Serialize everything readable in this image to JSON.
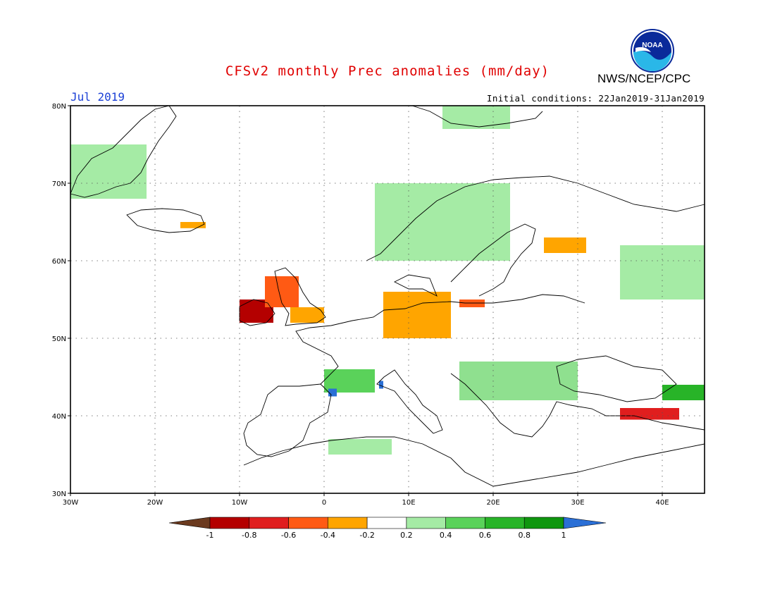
{
  "header": {
    "title": "CFSv2 monthly Prec anomalies (mm/day)",
    "agency": "NWS/NCEP/CPC",
    "logo_text": "NOAA",
    "month": "Jul 2019",
    "initial_conditions": "Initial conditions: 22Jan2019-31Jan2019"
  },
  "axes": {
    "lat_labels": [
      "80N",
      "70N",
      "60N",
      "50N",
      "40N",
      "30N"
    ],
    "lon_labels": [
      "30W",
      "20W",
      "10W",
      "0",
      "10E",
      "20E",
      "30E",
      "40E"
    ]
  },
  "colorbar": {
    "labels": [
      "-1",
      "-0.8",
      "-0.6",
      "-0.4",
      "-0.2",
      "0.2",
      "0.4",
      "0.6",
      "0.8",
      "1"
    ],
    "colors": [
      "#6b3a1f",
      "#b40000",
      "#e01e1e",
      "#ff5a14",
      "#ffa500",
      "#ffffff",
      "#a5eba5",
      "#5ad25a",
      "#28b428",
      "#0f960f",
      "#2a6fd6"
    ]
  },
  "chart_data": {
    "type": "heatmap",
    "title": "CFSv2 monthly Prec anomalies (mm/day)",
    "lon_range": [
      -30,
      45
    ],
    "lat_range": [
      30,
      80
    ],
    "units": "mm/day",
    "regions": [
      {
        "name": "Greenland coast",
        "lon": [
          -30,
          -21
        ],
        "lat": [
          68,
          75
        ],
        "class": "0.2-0.4"
      },
      {
        "name": "Iceland east",
        "lon": [
          -17,
          -14
        ],
        "lat": [
          64.2,
          65
        ],
        "class": "-0.4--0.2"
      },
      {
        "name": "Ireland",
        "lon": [
          -10,
          -6
        ],
        "lat": [
          52,
          55
        ],
        "class": "-1--0.6"
      },
      {
        "name": "Scotland",
        "lon": [
          -7,
          -3
        ],
        "lat": [
          54,
          58
        ],
        "class": "-0.6--0.4"
      },
      {
        "name": "England east",
        "lon": [
          -4,
          0
        ],
        "lat": [
          52,
          54
        ],
        "class": "-0.4--0.2"
      },
      {
        "name": "Northern Germany / Denmark",
        "lon": [
          7,
          15
        ],
        "lat": [
          50,
          56
        ],
        "class": "-0.6--0.2"
      },
      {
        "name": "Poland north",
        "lon": [
          16,
          19
        ],
        "lat": [
          54,
          55
        ],
        "class": "-0.6--0.4"
      },
      {
        "name": "Finland east",
        "lon": [
          26,
          31
        ],
        "lat": [
          61,
          63
        ],
        "class": "-0.6--0.2"
      },
      {
        "name": "Norway",
        "lon": [
          6,
          22
        ],
        "lat": [
          60,
          70
        ],
        "class": "0.2-0.4"
      },
      {
        "name": "Russia west",
        "lon": [
          35,
          45
        ],
        "lat": [
          55,
          62
        ],
        "class": "0.2-0.4"
      },
      {
        "name": "France south",
        "lon": [
          0,
          6
        ],
        "lat": [
          43,
          46
        ],
        "class": "0.4-0.8"
      },
      {
        "name": "Pyrenees",
        "lon": [
          0.5,
          1.5
        ],
        "lat": [
          42.5,
          43.5
        ],
        "class": ">1"
      },
      {
        "name": "Alps",
        "lon": [
          6.5,
          7
        ],
        "lat": [
          43.5,
          44.5
        ],
        "class": ">1"
      },
      {
        "name": "Balkans",
        "lon": [
          16,
          30
        ],
        "lat": [
          42,
          47
        ],
        "class": "0.2-0.6"
      },
      {
        "name": "Turkey east",
        "lon": [
          35,
          42
        ],
        "lat": [
          39.5,
          41
        ],
        "class": "-1--0.4"
      },
      {
        "name": "Caucasus",
        "lon": [
          40,
          45
        ],
        "lat": [
          42,
          44
        ],
        "class": "0.4-1"
      },
      {
        "name": "North Africa",
        "lon": [
          0.5,
          8
        ],
        "lat": [
          35,
          37
        ],
        "class": "0.2-0.4"
      },
      {
        "name": "Svalbard",
        "lon": [
          14,
          22
        ],
        "lat": [
          77,
          80
        ],
        "class": "0.2-0.4"
      }
    ]
  }
}
